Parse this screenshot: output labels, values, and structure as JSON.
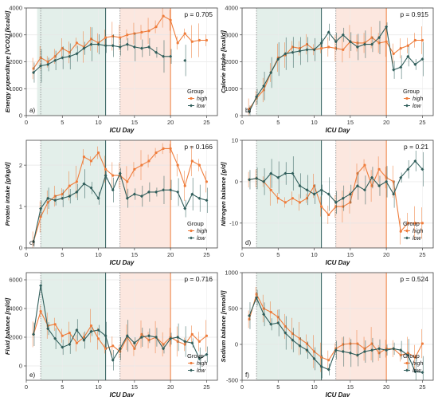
{
  "figure": {
    "x_axis_label": "ICU Day",
    "legend_title": "Group",
    "legend_entries": [
      "high",
      "low"
    ],
    "colors": {
      "high": "#ef7d3c",
      "low": "#2f5d5a",
      "shade_low": "#e3efea",
      "shade_high": "#fce7df"
    }
  },
  "chart_data": [
    {
      "type": "line",
      "panel_label": "a)",
      "ylabel": "Energy expenditure [VCO2] [kcal/d]",
      "p_value": "p = 0.705",
      "xlim": [
        0,
        26.5
      ],
      "ylim": [
        0,
        4000
      ],
      "x_ticks": [
        0,
        5,
        10,
        15,
        20,
        25
      ],
      "y_ticks": [
        0,
        1000,
        2000,
        3000,
        4000
      ],
      "x": [
        1,
        2,
        3,
        4,
        5,
        6,
        7,
        8,
        9,
        10,
        11,
        12,
        13,
        14,
        15,
        16,
        17,
        18,
        19,
        20,
        21,
        22,
        23,
        24,
        25
      ],
      "series": [
        {
          "name": "high",
          "values": [
            1750,
            2150,
            2000,
            2200,
            2500,
            2350,
            2700,
            2550,
            2850,
            2700,
            2900,
            2950,
            2900,
            3000,
            3050,
            3100,
            3150,
            3300,
            3700,
            3550,
            2700,
            3050,
            2750,
            2800,
            2800
          ]
        },
        {
          "name": "low",
          "values": [
            1600,
            1850,
            1900,
            2050,
            2150,
            2200,
            2300,
            2500,
            2650,
            2650,
            2600,
            2600,
            2550,
            2650,
            2550,
            2500,
            2550,
            2350,
            2200,
            2200,
            null,
            2050,
            null,
            null,
            null
          ]
        }
      ],
      "shade_low": [
        1.5,
        11
      ],
      "shade_high": [
        13,
        20
      ],
      "vline_dotted": [
        2,
        13
      ],
      "vline_low": 11,
      "vline_high": 20
    },
    {
      "type": "line",
      "panel_label": "b)",
      "ylabel": "Calorie intake [kcal/d]",
      "p_value": "p = 0.915",
      "xlim": [
        0,
        26.5
      ],
      "ylim": [
        0,
        4000
      ],
      "x_ticks": [
        0,
        5,
        10,
        15,
        20,
        25
      ],
      "y_ticks": [
        0,
        1000,
        2000,
        3000,
        4000
      ],
      "x": [
        1,
        2,
        3,
        4,
        5,
        6,
        7,
        8,
        9,
        10,
        11,
        12,
        13,
        14,
        15,
        16,
        17,
        18,
        19,
        20,
        21,
        22,
        23,
        24,
        25
      ],
      "series": [
        {
          "name": "high",
          "values": [
            250,
            650,
            950,
            1600,
            2150,
            2250,
            2550,
            2500,
            2650,
            2450,
            2500,
            2550,
            2500,
            2450,
            2750,
            2700,
            2700,
            2900,
            2700,
            2750,
            2300,
            2500,
            2600,
            2800,
            2800
          ]
        },
        {
          "name": "low",
          "values": [
            150,
            700,
            1100,
            1600,
            2100,
            2300,
            2350,
            2400,
            2450,
            2450,
            2700,
            3100,
            2750,
            3000,
            2750,
            2550,
            2650,
            2650,
            2900,
            3300,
            1700,
            1800,
            2200,
            1900,
            2100
          ]
        }
      ],
      "shade_low": [
        2,
        11
      ],
      "shade_high": [
        13,
        20
      ],
      "vline_dotted": [
        2,
        13
      ],
      "vline_low": 11,
      "vline_high": 20
    },
    {
      "type": "line",
      "panel_label": "c)",
      "ylabel": "Protein intake [g/kg/d]",
      "p_value": "p = 0.166",
      "xlim": [
        0,
        26.5
      ],
      "ylim": [
        0,
        2.6
      ],
      "x_ticks": [
        0,
        5,
        10,
        15,
        20,
        25
      ],
      "y_ticks": [
        0,
        1,
        2
      ],
      "x": [
        1,
        2,
        3,
        4,
        5,
        6,
        7,
        8,
        9,
        10,
        11,
        12,
        13,
        14,
        15,
        16,
        17,
        18,
        19,
        20,
        21,
        22,
        23,
        24,
        25
      ],
      "series": [
        {
          "name": "high",
          "values": [
            0.15,
            0.75,
            1.1,
            1.25,
            1.3,
            1.5,
            1.6,
            2.2,
            2.1,
            2.3,
            1.9,
            1.75,
            1.75,
            1.6,
            1.9,
            2.0,
            2.1,
            2.3,
            2.4,
            2.4,
            2.0,
            1.5,
            2.1,
            2.0,
            1.6
          ]
        },
        {
          "name": "low",
          "values": [
            0.15,
            0.95,
            1.2,
            1.15,
            1.2,
            1.25,
            1.35,
            1.55,
            1.45,
            1.2,
            1.75,
            1.4,
            1.8,
            1.2,
            1.3,
            1.25,
            1.35,
            1.35,
            1.4,
            1.4,
            1.35,
            0.95,
            1.3,
            1.2,
            1.15
          ]
        }
      ],
      "shade_low": [
        2,
        11
      ],
      "shade_high": [
        13,
        20
      ],
      "vline_dotted": [
        2,
        13
      ],
      "vline_low": 11,
      "vline_high": 20
    },
    {
      "type": "line",
      "panel_label": "d)",
      "ylabel": "Nitrogen balance [g/d]",
      "p_value": "p = 0.21",
      "xlim": [
        0,
        26.5
      ],
      "ylim": [
        -16,
        10
      ],
      "x_ticks": [
        0,
        5,
        10,
        15,
        20,
        25
      ],
      "y_ticks": [
        -10,
        0,
        10
      ],
      "x": [
        1,
        2,
        3,
        4,
        5,
        6,
        7,
        8,
        9,
        10,
        11,
        12,
        13,
        14,
        15,
        16,
        17,
        18,
        19,
        20,
        21,
        22,
        23,
        24,
        25
      ],
      "series": [
        {
          "name": "high",
          "values": [
            0.5,
            0.8,
            0,
            -2,
            -4,
            -5,
            -4,
            -5,
            -4,
            -1,
            -6,
            -8,
            -6,
            -6,
            -5,
            2,
            4,
            -1,
            3,
            1,
            0,
            -12,
            -10,
            -10,
            -10
          ]
        },
        {
          "name": "low",
          "values": [
            0.5,
            0.8,
            0,
            2,
            1,
            2,
            2,
            -1,
            -2,
            -3,
            -2,
            -3,
            -5,
            -4,
            -3,
            -1,
            -2,
            1,
            -1,
            0,
            -3,
            1,
            3,
            5,
            3
          ]
        }
      ],
      "shade_low": [
        2,
        11
      ],
      "shade_high": [
        13,
        20
      ],
      "vline_dotted": [
        2,
        13
      ],
      "vline_low": 11,
      "vline_high": 20
    },
    {
      "type": "line",
      "panel_label": "e)",
      "ylabel": "Fluid balance [ml/d]",
      "p_value": "p = 0.716",
      "xlim": [
        0,
        26.5
      ],
      "ylim": [
        -1000,
        6500
      ],
      "x_ticks": [
        0,
        5,
        10,
        15,
        20,
        25
      ],
      "y_ticks": [
        0,
        2000,
        4000,
        6000
      ],
      "x": [
        1,
        2,
        3,
        4,
        5,
        6,
        7,
        8,
        9,
        10,
        11,
        12,
        13,
        14,
        15,
        16,
        17,
        18,
        19,
        20,
        21,
        22,
        23,
        24,
        25
      ],
      "series": [
        {
          "name": "high",
          "values": [
            2200,
            3800,
            2800,
            2900,
            2100,
            2300,
            1600,
            2000,
            2800,
            1900,
            1200,
            1400,
            1000,
            2000,
            1200,
            2200,
            1800,
            2000,
            1500,
            2000,
            1700,
            1500,
            2200,
            1700,
            2100
          ]
        },
        {
          "name": "low",
          "values": [
            2200,
            5600,
            2600,
            1900,
            1300,
            1500,
            2500,
            1800,
            2400,
            2500,
            2100,
            400,
            1200,
            2100,
            1600,
            2000,
            2100,
            2000,
            1200,
            1900,
            2000,
            1700,
            1600,
            500,
            800
          ]
        }
      ],
      "shade_low": [
        2,
        11
      ],
      "shade_high": [
        13,
        20
      ],
      "vline_dotted": [
        2,
        13
      ],
      "vline_low": 11,
      "vline_high": 20
    },
    {
      "type": "line",
      "panel_label": "f)",
      "ylabel": "Sodium balance [mmol/l]",
      "p_value": "p = 0.524",
      "xlim": [
        0,
        26.5
      ],
      "ylim": [
        -500,
        1000
      ],
      "x_ticks": [
        0,
        5,
        10,
        15,
        20,
        25
      ],
      "y_ticks": [
        -500,
        0,
        500,
        1000
      ],
      "x": [
        1,
        2,
        3,
        4,
        5,
        6,
        7,
        8,
        9,
        10,
        11,
        12,
        13,
        14,
        15,
        16,
        17,
        18,
        19,
        20,
        21,
        22,
        23,
        24,
        25
      ],
      "series": [
        {
          "name": "high",
          "values": [
            350,
            700,
            500,
            450,
            380,
            250,
            150,
            80,
            10,
            -100,
            -180,
            -220,
            -60,
            0,
            10,
            10,
            -60,
            10,
            -120,
            -60,
            -60,
            -150,
            -120,
            -180,
            10
          ]
        },
        {
          "name": "low",
          "values": [
            400,
            650,
            420,
            280,
            300,
            160,
            60,
            -20,
            -80,
            -200,
            -310,
            -350,
            -80,
            -100,
            -120,
            -150,
            -100,
            -80,
            -60,
            -80,
            -60,
            -80,
            -150,
            -380,
            -390
          ]
        }
      ],
      "shade_low": [
        2,
        11
      ],
      "shade_high": [
        13,
        20
      ],
      "vline_dotted": [
        2,
        13
      ],
      "vline_low": 11,
      "vline_high": 20
    }
  ]
}
